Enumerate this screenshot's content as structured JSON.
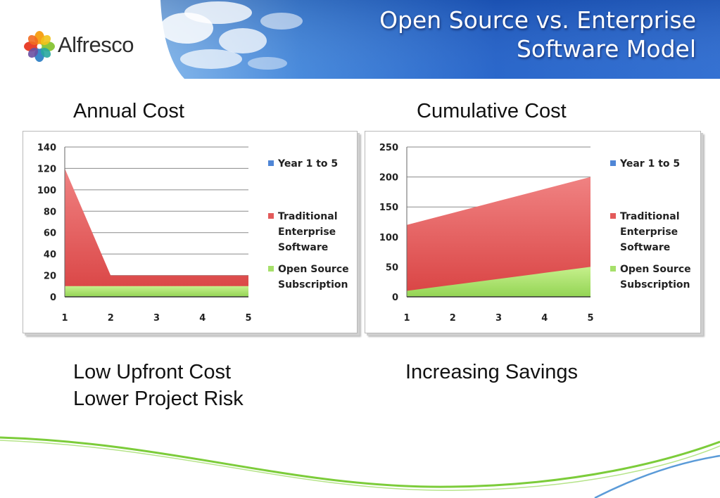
{
  "header": {
    "brand_name": "Alfresco",
    "title_lines": [
      "Open Source vs. Enterprise",
      "Software Model"
    ]
  },
  "sections": {
    "annual_label": "Annual Cost",
    "cumulative_label": "Cumulative Cost",
    "annual_caption_lines": [
      "Low Upfront Cost",
      "Lower Project Risk"
    ],
    "cumulative_caption": "Increasing Savings"
  },
  "colors": {
    "banner_blue": "#1f5fc8",
    "traditional_red": "#e35a5a",
    "open_source_green": "#a6e06a",
    "year_blue": "#4f86d6",
    "swoosh_green": "#7ccc3a",
    "swoosh_blue": "#5b9bd8"
  },
  "chart_data": [
    {
      "type": "area",
      "stacked": true,
      "title": "Annual Cost",
      "x": [
        "1",
        "2",
        "3",
        "4",
        "5"
      ],
      "ylim": [
        0,
        140
      ],
      "yticks": [
        "0",
        "20",
        "40",
        "60",
        "80",
        "100",
        "120",
        "140"
      ],
      "grid": true,
      "legend_position": "right",
      "legend": [
        "Year 1 to 5",
        "Traditional Enterprise Software",
        "Open Source Subscription"
      ],
      "series": [
        {
          "name": "Year 1 to 5",
          "values": [
            0,
            0,
            0,
            0,
            0
          ]
        },
        {
          "name": "Traditional Enterprise Software",
          "values": [
            120,
            20,
            20,
            20,
            20
          ]
        },
        {
          "name": "Open Source Subscription",
          "values": [
            10,
            10,
            10,
            10,
            10
          ]
        }
      ]
    },
    {
      "type": "area",
      "stacked": true,
      "title": "Cumulative Cost",
      "x": [
        "1",
        "2",
        "3",
        "4",
        "5"
      ],
      "ylim": [
        0,
        250
      ],
      "yticks": [
        "0",
        "50",
        "100",
        "150",
        "200",
        "250"
      ],
      "grid": true,
      "legend_position": "right",
      "legend": [
        "Year 1 to 5",
        "Traditional Enterprise Software",
        "Open Source Subscription"
      ],
      "series": [
        {
          "name": "Year 1 to 5",
          "values": [
            0,
            0,
            0,
            0,
            0
          ]
        },
        {
          "name": "Traditional Enterprise Software",
          "values": [
            120,
            140,
            160,
            180,
            200
          ]
        },
        {
          "name": "Open Source Subscription",
          "values": [
            10,
            20,
            30,
            40,
            50
          ]
        }
      ]
    }
  ]
}
